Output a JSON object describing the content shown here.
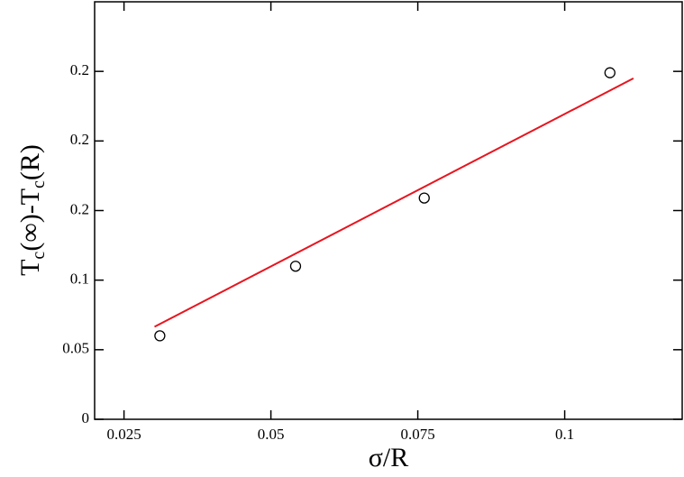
{
  "chart_data": {
    "type": "scatter",
    "x_label": "σ/R",
    "y_label": [
      "T",
      "c",
      "(∞)-T",
      "c",
      "(R)"
    ],
    "xlim": [
      0.02,
      0.12
    ],
    "xticks": [
      0.025,
      0.05,
      0.075,
      0.1
    ],
    "ylim": [
      0,
      0.3
    ],
    "yticks": [
      0,
      0.05,
      0.1,
      {
        "value": 0.15,
        "label": "0.2"
      },
      0.2,
      {
        "value": 0.25,
        "label": "0.2"
      }
    ],
    "series": [
      {
        "type": "scatter",
        "color": "#000000",
        "x": [
          0.0311,
          0.0542,
          0.0761,
          0.1077
        ],
        "values": [
          0.06,
          0.11,
          0.159,
          0.249
        ]
      },
      {
        "type": "line",
        "color": "#e8141e",
        "x": [
          0.0302,
          0.1117
        ],
        "values": [
          0.0665,
          0.245
        ]
      }
    ]
  }
}
